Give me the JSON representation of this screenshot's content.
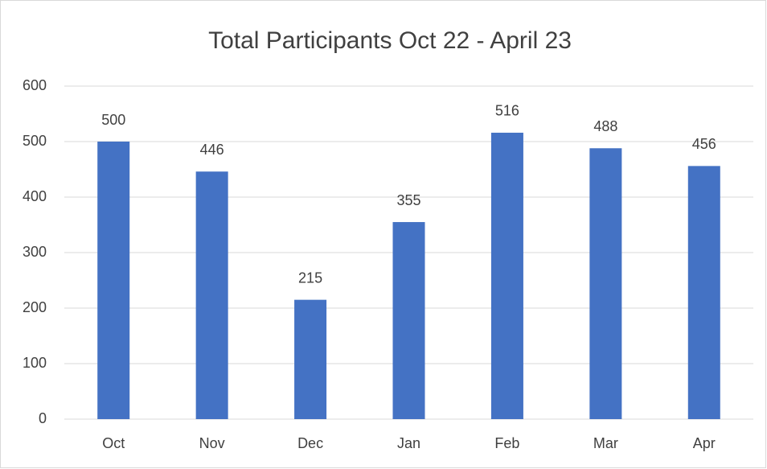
{
  "chart_data": {
    "type": "bar",
    "title": "Total Participants Oct 22 - April 23",
    "categories": [
      "Oct",
      "Nov",
      "Dec",
      "Jan",
      "Feb",
      "Mar",
      "Apr"
    ],
    "values": [
      500,
      446,
      215,
      355,
      516,
      488,
      456
    ],
    "color": "#4472c4",
    "ylim": [
      0,
      600
    ],
    "yticks": [
      0,
      100,
      200,
      300,
      400,
      500,
      600
    ],
    "grid": true
  }
}
